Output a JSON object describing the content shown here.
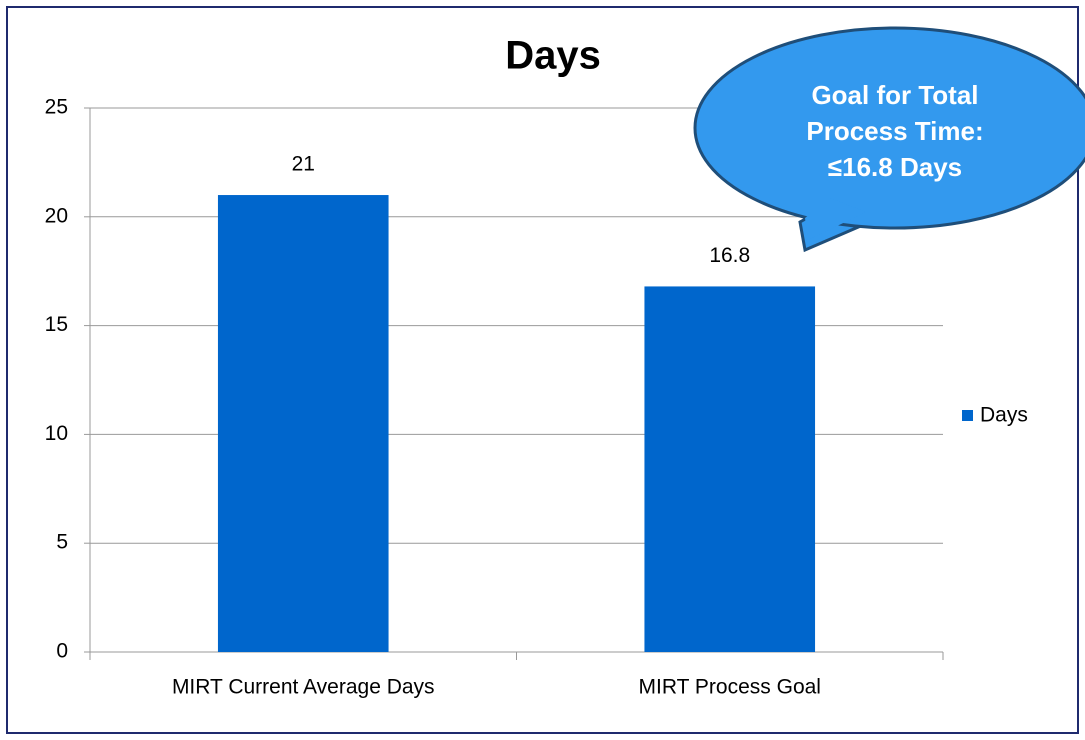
{
  "chart_data": {
    "type": "bar",
    "title": "Days",
    "categories": [
      "MIRT Current Average Days",
      "MIRT Process Goal"
    ],
    "series": [
      {
        "name": "Days",
        "color": "#0066cc",
        "values": [
          21,
          16.8
        ]
      }
    ],
    "ylim": [
      0,
      25
    ],
    "yticks": [
      0,
      5,
      10,
      15,
      20,
      25
    ],
    "grid": true,
    "legend": "right",
    "annotation": [
      "Goal for Total",
      "Process Time:",
      "≤16.8 Days"
    ]
  }
}
